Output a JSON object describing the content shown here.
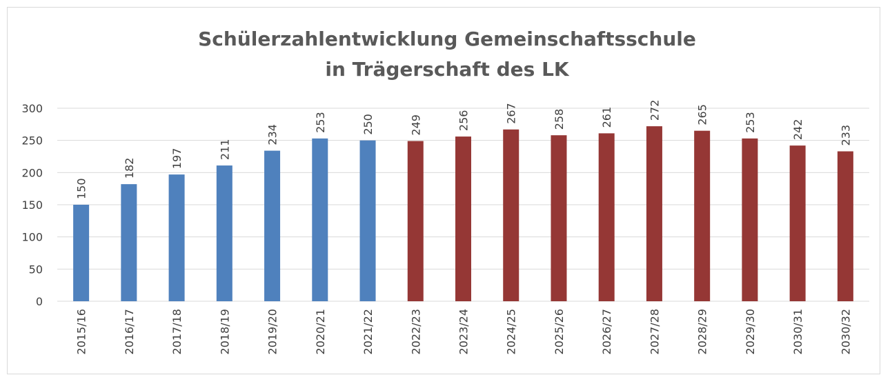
{
  "chart_data": {
    "type": "bar",
    "title": [
      "Schülerzahlentwicklung Gemeinschaftsschule",
      "in Trägerschaft des LK"
    ],
    "categories": [
      "2015/16",
      "2016/17",
      "2017/18",
      "2018/19",
      "2019/20",
      "2020/21",
      "2021/22",
      "2022/23",
      "2023/24",
      "2024/25",
      "2025/26",
      "2026/27",
      "2027/28",
      "2028/29",
      "2029/30",
      "2030/31",
      "2030/32"
    ],
    "values": [
      150,
      182,
      197,
      211,
      234,
      253,
      250,
      249,
      256,
      267,
      258,
      261,
      272,
      265,
      253,
      242,
      233
    ],
    "colors": [
      "#4f81bd",
      "#4f81bd",
      "#4f81bd",
      "#4f81bd",
      "#4f81bd",
      "#4f81bd",
      "#4f81bd",
      "#953735",
      "#953735",
      "#953735",
      "#953735",
      "#953735",
      "#953735",
      "#953735",
      "#953735",
      "#953735",
      "#953735"
    ],
    "ylim": [
      0,
      300
    ],
    "yticks": [
      0,
      50,
      100,
      150,
      200,
      250,
      300
    ],
    "grid": true
  }
}
